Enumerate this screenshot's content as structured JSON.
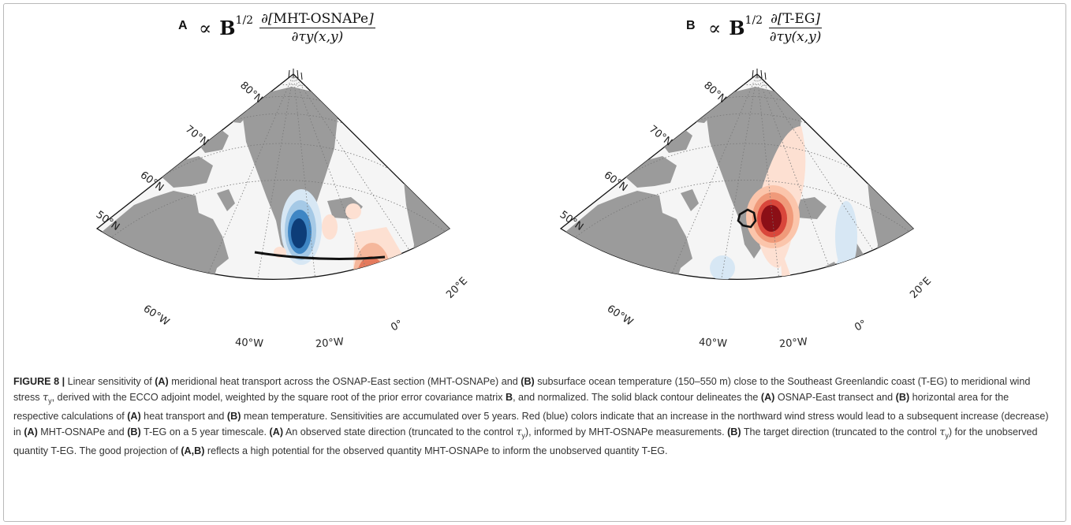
{
  "panels": [
    {
      "letter": "A",
      "formula_prop": "∝",
      "formula_B": "B",
      "formula_exp": "1/2",
      "formula_num_prefix": "∂[",
      "formula_num_label": "MHT-OSNAPe",
      "formula_num_suffix": "]",
      "formula_den": "∂τy(x,y)",
      "lat_labels": [
        "80°N",
        "70°N",
        "60°N",
        "50°N"
      ],
      "lon_labels": [
        "60°W",
        "40°W",
        "20°W",
        "0°",
        "20°E"
      ],
      "contour": "OSNAP-East transect"
    },
    {
      "letter": "B",
      "formula_prop": "∝",
      "formula_B": "B",
      "formula_exp": "1/2",
      "formula_num_prefix": "∂[",
      "formula_num_label": "T-EG",
      "formula_num_suffix": "]",
      "formula_den": "∂τy(x,y)",
      "lat_labels": [
        "80°N",
        "70°N",
        "60°N",
        "50°N"
      ],
      "lon_labels": [
        "60°W",
        "40°W",
        "20°W",
        "0°",
        "20°E"
      ],
      "contour": "horizontal area"
    }
  ],
  "colors": {
    "land": "#9b9b9b",
    "ocean": "#f5f5f5",
    "red_dark": "#8b0f16",
    "red_mid": "#d9473b",
    "red_light": "#f5b79c",
    "red_faint": "#fde0d2",
    "blue_dark": "#0d3d78",
    "blue_mid": "#3f86c4",
    "blue_light": "#a5c9e6",
    "blue_faint": "#d7e7f4"
  },
  "caption": {
    "figure_label": "FIGURE 8 |",
    "p1": " Linear sensitivity of ",
    "A1": "(A)",
    "p2": " meridional heat transport across the OSNAP-East section (MHT-OSNAPe) and ",
    "B1": "(B)",
    "p3": " subsurface ocean temperature (150–550 m) close to the Southeast Greenlandic coast (T-EG) to meridional wind stress ",
    "p4": ", derived with the ECCO adjoint model, weighted by the square root of the prior error covariance matrix ",
    "Bmat": "B",
    "p5": ", and normalized. The solid black contour delineates the ",
    "A2": "(A)",
    "p6": " OSNAP-East transect and ",
    "B2": "(B)",
    "p7": " horizontal area for the respective calculations of ",
    "A3": "(A)",
    "p8": " heat transport and ",
    "B3": "(B)",
    "p9": " mean temperature. Sensitivities are accumulated over 5 years. Red (blue) colors indicate that an increase in the northward wind stress would lead to a subsequent increase (decrease) in ",
    "A4": "(A)",
    "p10": " MHT-OSNAPe and ",
    "B4": "(B)",
    "p11": " T-EG on a 5 year timescale. ",
    "A5": "(A)",
    "p12": " An observed state direction (truncated to the control ",
    "p13": "), informed by MHT-OSNAPe measurements. ",
    "B5": "(B)",
    "p14": " The target direction (truncated to the control ",
    "p15": ") for the unobserved quantity T-EG. The good projection of ",
    "AB": "(A,B)",
    "p16": " reflects a high potential for the observed quantity MHT-OSNAPe to inform the unobserved quantity T-EG.",
    "tau": "τ",
    "y": "y"
  }
}
